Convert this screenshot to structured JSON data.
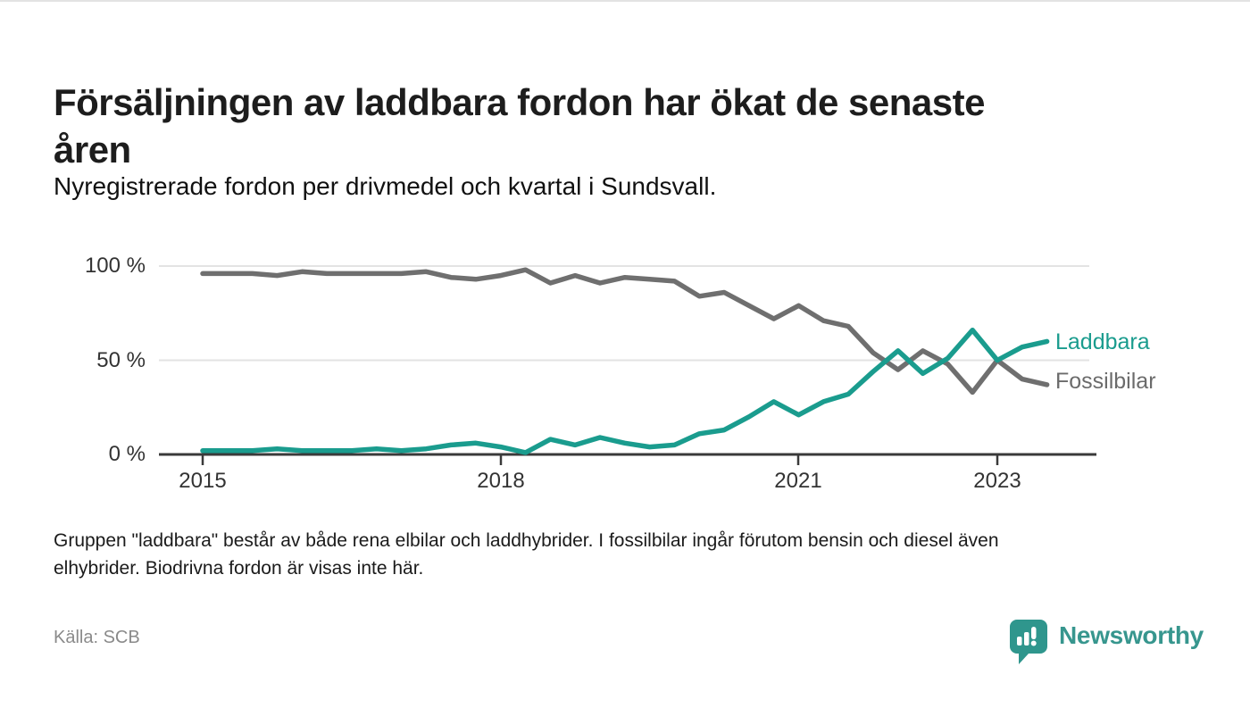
{
  "header": {
    "title": "Försäljningen av laddbara fordon har ökat de senaste åren",
    "title_line1": "Försäljningen av laddbara fordon har ökat de senaste",
    "title_line2": "åren",
    "subtitle": "Nyregistrerade fordon per drivmedel och kvartal i Sundsvall."
  },
  "chart_data": {
    "type": "line",
    "unit": "%",
    "x_axis": "kvartal",
    "categories": [
      "2015 Q1",
      "2015 Q2",
      "2015 Q3",
      "2015 Q4",
      "2016 Q1",
      "2016 Q2",
      "2016 Q3",
      "2016 Q4",
      "2017 Q1",
      "2017 Q2",
      "2017 Q3",
      "2017 Q4",
      "2018 Q1",
      "2018 Q2",
      "2018 Q3",
      "2018 Q4",
      "2019 Q1",
      "2019 Q2",
      "2019 Q3",
      "2019 Q4",
      "2020 Q1",
      "2020 Q2",
      "2020 Q3",
      "2020 Q4",
      "2021 Q1",
      "2021 Q2",
      "2021 Q3",
      "2021 Q4",
      "2022 Q1",
      "2022 Q2",
      "2022 Q3",
      "2022 Q4",
      "2023 Q1",
      "2023 Q2",
      "2023 Q3"
    ],
    "series": [
      {
        "name": "Laddbara",
        "color": "#1a9c8e",
        "values": [
          2,
          2,
          2,
          3,
          2,
          2,
          2,
          3,
          2,
          3,
          5,
          6,
          4,
          1,
          8,
          5,
          9,
          6,
          4,
          5,
          11,
          13,
          20,
          28,
          21,
          28,
          32,
          44,
          55,
          43,
          51,
          66,
          50,
          57,
          60
        ]
      },
      {
        "name": "Fossilbilar",
        "color": "#6f6f6f",
        "values": [
          96,
          96,
          96,
          95,
          97,
          96,
          96,
          96,
          96,
          97,
          94,
          93,
          95,
          98,
          91,
          95,
          91,
          94,
          93,
          92,
          84,
          86,
          79,
          72,
          79,
          71,
          68,
          54,
          45,
          55,
          48,
          33,
          50,
          40,
          37
        ]
      }
    ],
    "ylim": [
      0,
      100
    ],
    "y_tick_labels": [
      "100 %",
      "50 %",
      "0 %"
    ],
    "x_tick_labels": [
      "2015",
      "2018",
      "2021",
      "2023"
    ],
    "grid": "horizontal",
    "legend_position": "right-end-of-lines",
    "axis_color": "#3a3a3a",
    "gridline_color": "#e3e3e3"
  },
  "footnote": {
    "text": "Gruppen \"laddbara\" består av både rena elbilar och laddhybrider. I fossilbilar ingår förutom bensin och diesel även elhybrider. Biodrivna fordon är visas inte här.",
    "line1": "Gruppen \"laddbara\" består av både rena elbilar och laddhybrider. I fossilbilar ingår förutom bensin och diesel även",
    "line2": "elhybrider. Biodrivna fordon är visas inte här."
  },
  "source": {
    "label": "Källa: SCB"
  },
  "brand": {
    "name": "Newsworthy",
    "color": "#37968e"
  }
}
